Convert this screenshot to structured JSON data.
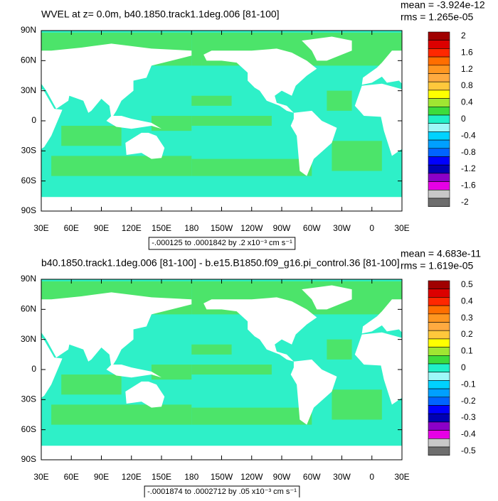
{
  "x_labels": [
    "30E",
    "60E",
    "90E",
    "120E",
    "150E",
    "180",
    "150W",
    "120W",
    "90W",
    "60W",
    "30W",
    "0",
    "30E"
  ],
  "y_labels": [
    "90N",
    "60N",
    "30N",
    "0",
    "30S",
    "60S",
    "90S"
  ],
  "panels": [
    {
      "title": "WVEL at z=    0.0m, b40.1850.track1.1deg.006 [81-100]",
      "mean": "mean = -3.924e-12",
      "rms": "rms = 1.265e-05",
      "info": "-.000125 to .0001842 by .2 x10⁻³ cm s⁻¹",
      "colorbar_labels": [
        "2",
        "1.6",
        "1.2",
        "0.8",
        "0.4",
        "0",
        "-0.4",
        "-0.8",
        "-1.2",
        "-1.6",
        "-2"
      ]
    },
    {
      "title": "b40.1850.track1.1deg.006 [81-100] - b.e15.B1850.f09_g16.pi_control.36 [81-100]",
      "mean": "mean = 4.683e-11",
      "rms": "rms = 1.619e-05",
      "info": "-.0001874 to .0002712 by .05 x10⁻³ cm s⁻¹",
      "colorbar_labels": [
        "0.5",
        "0.4",
        "0.3",
        "0.2",
        "0.1",
        "0",
        "-0.1",
        "-0.2",
        "-0.3",
        "-0.4",
        "-0.5"
      ]
    }
  ],
  "colorbar_colors": [
    "#a00000",
    "#dc0000",
    "#ff2800",
    "#ff6e00",
    "#ff9620",
    "#ffaa40",
    "#ffc83c",
    "#ffff00",
    "#a0e632",
    "#3cdc3c",
    "#20f0c8",
    "#9ef8f8",
    "#00d2ff",
    "#00a0ff",
    "#0064ff",
    "#0000ff",
    "#0000b4",
    "#8c00c8",
    "#e600e6",
    "#c8c8c8",
    "#6e6e6e"
  ]
}
